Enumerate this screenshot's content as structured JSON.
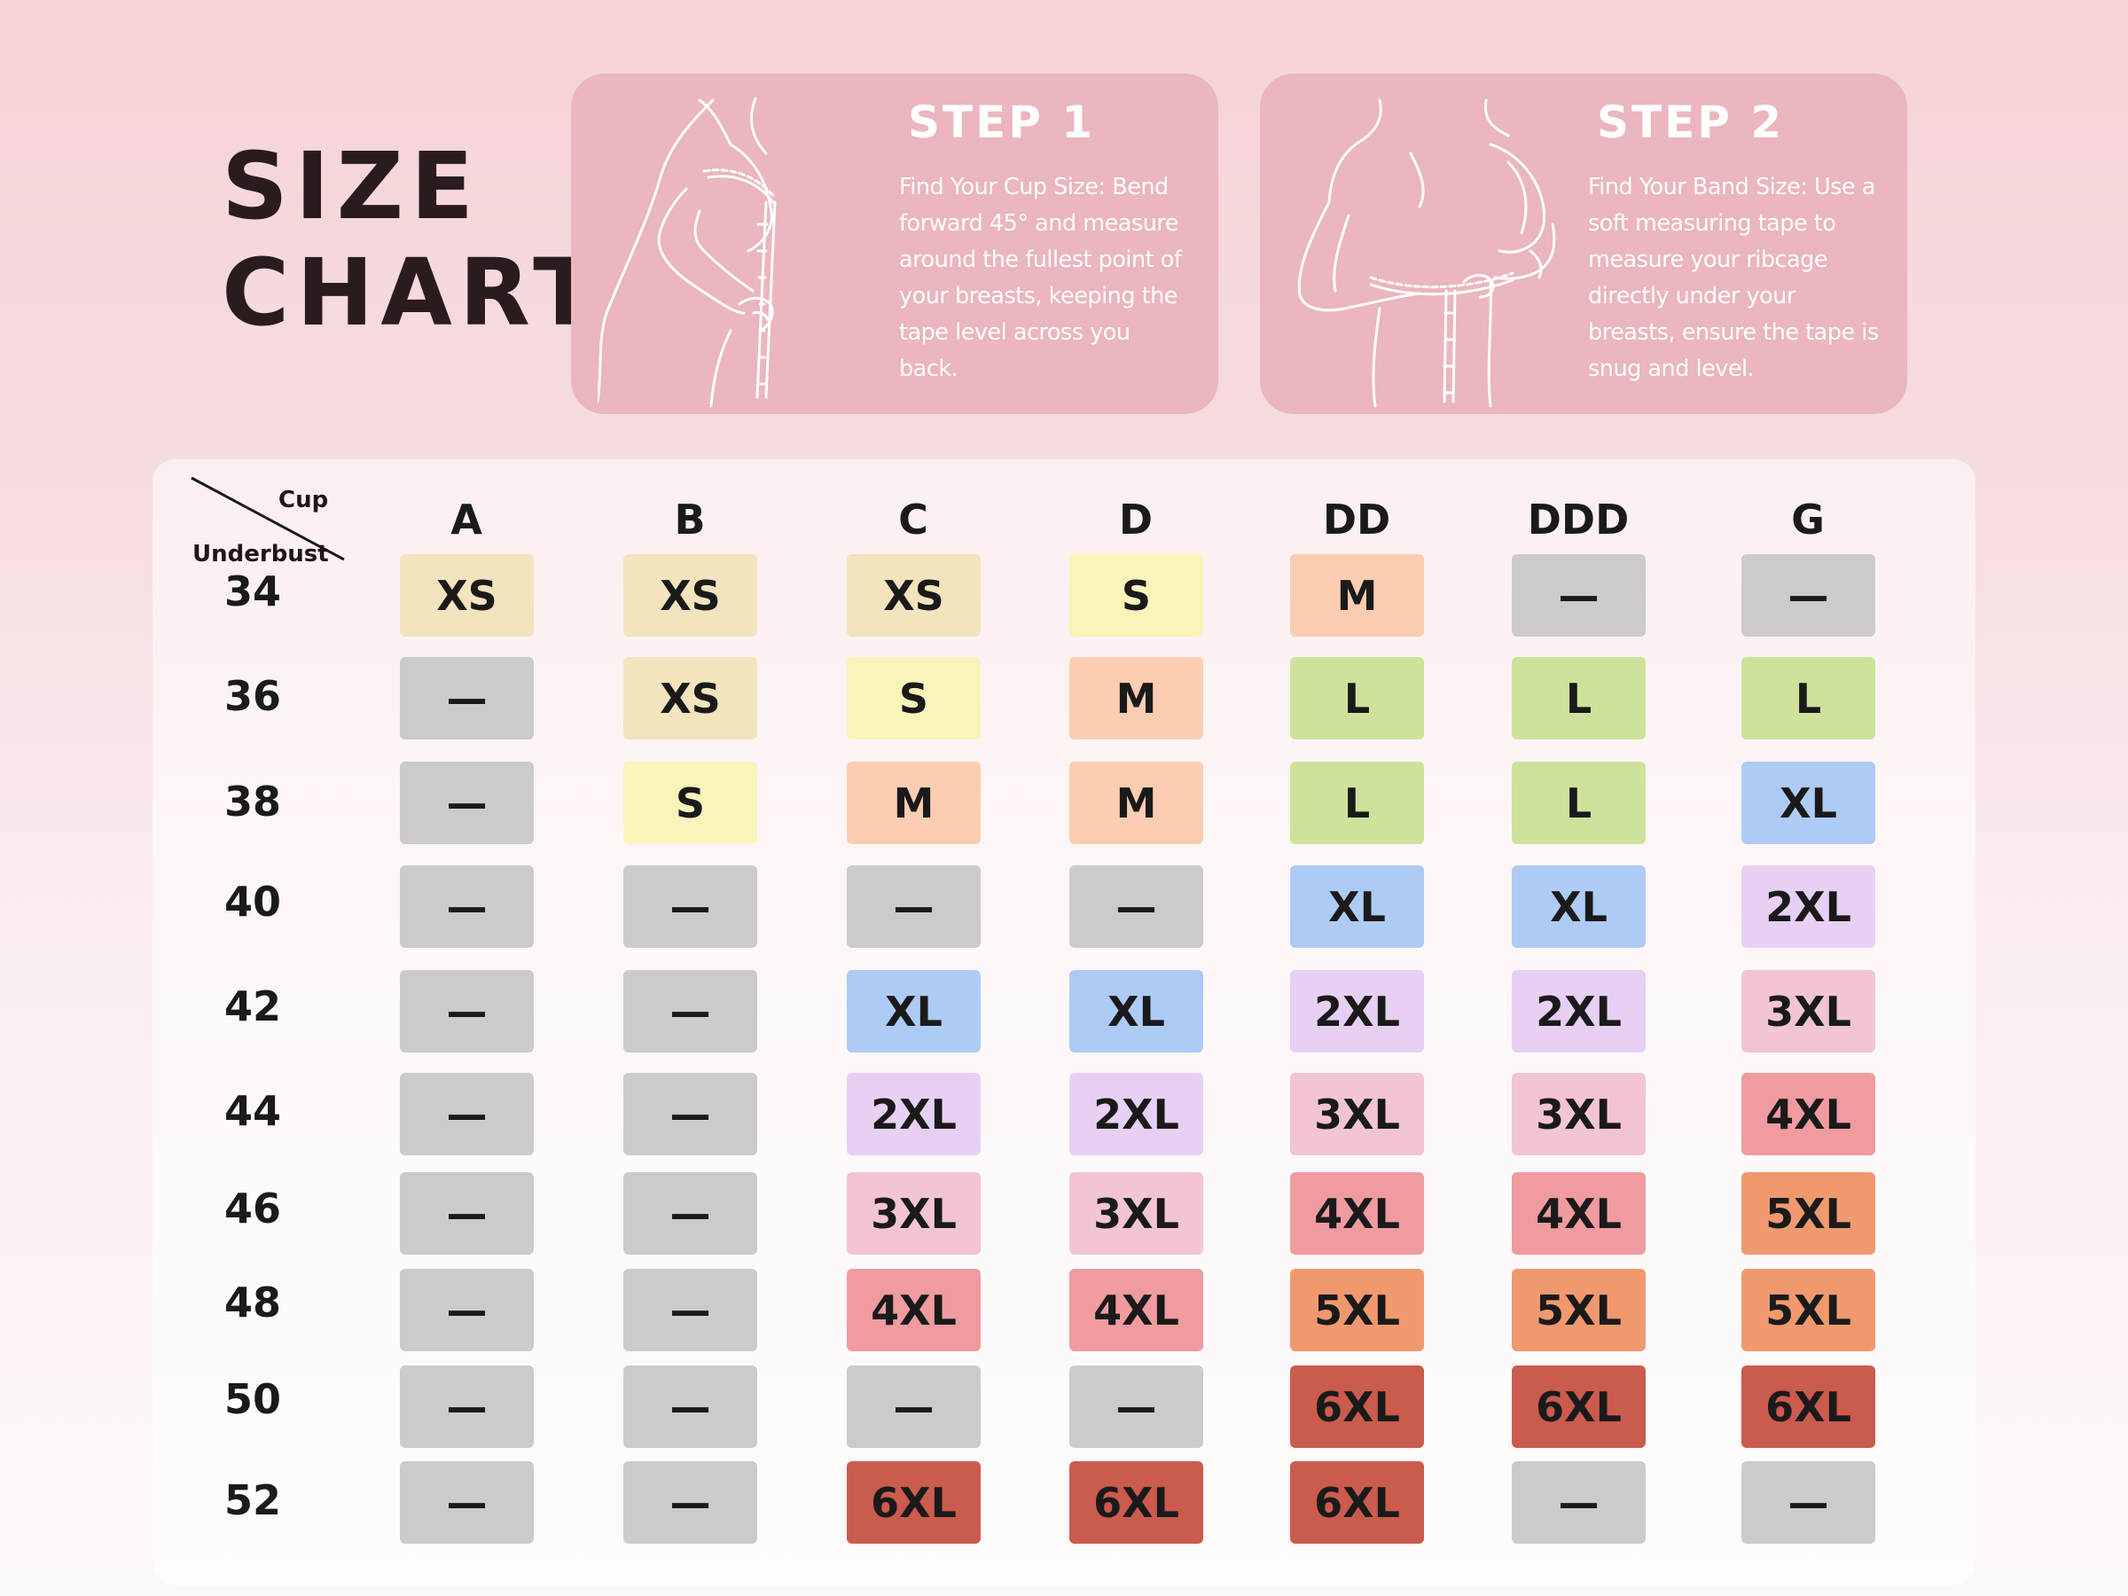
{
  "title": {
    "line1": "SIZE",
    "line2": "CHART"
  },
  "steps": [
    {
      "title": "STEP 1",
      "text": "Find Your Cup Size: Bend forward 45° and measure around the fullest point of your breasts, keeping the tape level across you back.",
      "illustration": "measuring-bust-illustration"
    },
    {
      "title": "STEP 2",
      "text": "Find Your Band Size: Use a soft measuring tape to measure your ribcage directly under your breasts, ensure the tape is snug and level.",
      "illustration": "measuring-underbust-illustration"
    }
  ],
  "table": {
    "corner_cup": "Cup",
    "corner_underbust": "Underbust",
    "cups": [
      "A",
      "B",
      "C",
      "D",
      "DD",
      "DDD",
      "G"
    ],
    "underbusts": [
      "34",
      "36",
      "38",
      "40",
      "42",
      "44",
      "46",
      "48",
      "50",
      "52"
    ],
    "sizes": [
      [
        "XS",
        "XS",
        "XS",
        "S",
        "M",
        "—",
        "—"
      ],
      [
        "—",
        "XS",
        "S",
        "M",
        "L",
        "L",
        "L"
      ],
      [
        "—",
        "S",
        "M",
        "M",
        "L",
        "L",
        "XL"
      ],
      [
        "—",
        "—",
        "—",
        "—",
        "XL",
        "XL",
        "2XL"
      ],
      [
        "—",
        "—",
        "XL",
        "XL",
        "2XL",
        "2XL",
        "3XL"
      ],
      [
        "—",
        "—",
        "2XL",
        "2XL",
        "3XL",
        "3XL",
        "4XL"
      ],
      [
        "—",
        "—",
        "3XL",
        "3XL",
        "4XL",
        "4XL",
        "5XL"
      ],
      [
        "—",
        "—",
        "4XL",
        "4XL",
        "5XL",
        "5XL",
        "5XL"
      ],
      [
        "—",
        "—",
        "—",
        "—",
        "6XL",
        "6XL",
        "6XL"
      ],
      [
        "—",
        "—",
        "6XL",
        "6XL",
        "6XL",
        "—",
        "—"
      ]
    ],
    "size_colors": {
      "XS": "#f3e4bd",
      "S": "#f8f4ba",
      "M": "#fdcdb1",
      "L": "#cde39b",
      "XL": "#aecbf6",
      "2XL": "#e7d0f4",
      "3XL": "#f3c4d5",
      "4XL": "#f09ba0",
      "5XL": "#f0996f",
      "6XL": "#cb5b4d",
      "—": "#cdcbc8"
    }
  },
  "colors": {
    "card_background": "#ebb6bd",
    "title_text": "#2a1c1e"
  }
}
